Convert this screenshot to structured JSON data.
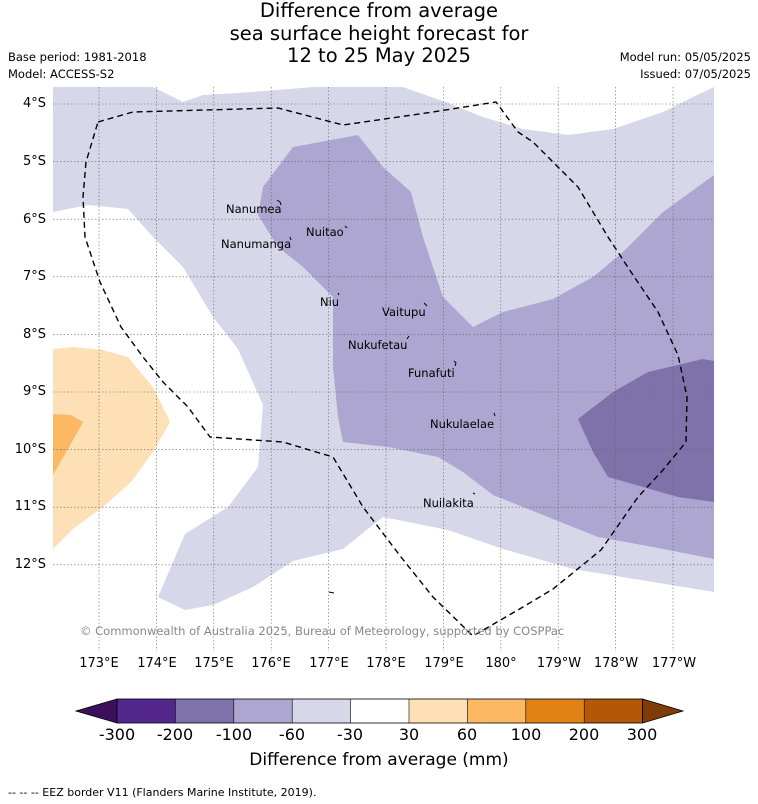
{
  "header": {
    "title_lines": [
      "Difference from average",
      "sea surface height forecast for",
      "12 to 25 May 2025"
    ],
    "base_period": "Base period: 1981-2018",
    "model": "Model: ACCESS-S2",
    "model_run": "Model run: 05/05/2025",
    "issued": "Issued: 07/05/2025"
  },
  "map": {
    "lat_labels": [
      "4°S",
      "5°S",
      "6°S",
      "7°S",
      "8°S",
      "9°S",
      "10°S",
      "11°S",
      "12°S"
    ],
    "lon_labels": [
      "173°E",
      "174°E",
      "175°E",
      "176°E",
      "177°E",
      "178°E",
      "179°E",
      "180°",
      "179°W",
      "178°W",
      "177°W"
    ],
    "places": [
      "Nanumea",
      "Nuitao",
      "Nanumanga",
      "Niu",
      "Vaitupu",
      "Nukufetau",
      "Funafuti",
      "Nukulaelae",
      "Nuilakita"
    ],
    "copyright": "© Commonwealth of Australia 2025, Bureau of Meteorology, supported by COSPPac",
    "colors": {
      "m300": "#3b0f5c",
      "m200": "#54278f",
      "m100": "#7f72ab",
      "m60": "#aca6d0",
      "m30": "#d7d7ea",
      "p30": "#fee0b6",
      "p60": "#fdb863",
      "p100": "#e08214",
      "p200": "#b35806",
      "p300": "#7f3b08",
      "neutral": "#ffffff"
    }
  },
  "colorbar": {
    "labels": [
      "-300",
      "-200",
      "-100",
      "-60",
      "-30",
      "30",
      "60",
      "100",
      "200",
      "300"
    ],
    "title": "Difference from average (mm)"
  },
  "footnote": "--  --  -- EEZ border V11 (Flanders Marine Institute, 2019)."
}
